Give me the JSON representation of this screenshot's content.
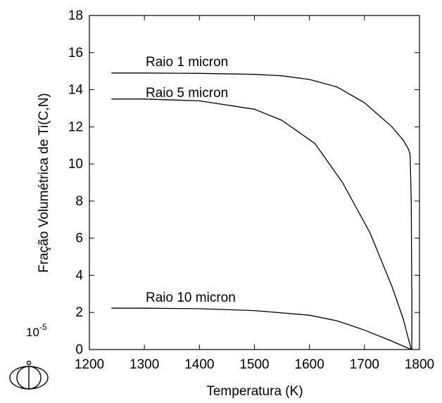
{
  "chart_data": {
    "type": "line",
    "xlabel": "Temperatura (K)",
    "ylabel": "Fração Volumétrica de Ti(C,N)",
    "y_multiplier": "10",
    "y_multiplier_exp": "-5",
    "xlim": [
      1200,
      1800
    ],
    "ylim": [
      0,
      18
    ],
    "x_ticks": [
      1200,
      1300,
      1400,
      1500,
      1600,
      1700,
      1800
    ],
    "y_ticks": [
      0,
      2,
      4,
      6,
      8,
      10,
      12,
      14,
      16,
      18
    ],
    "grid": false,
    "series": [
      {
        "name": "Raio 1 micron",
        "points": [
          [
            1240,
            14.9
          ],
          [
            1300,
            14.9
          ],
          [
            1400,
            14.88
          ],
          [
            1500,
            14.83
          ],
          [
            1550,
            14.75
          ],
          [
            1600,
            14.55
          ],
          [
            1650,
            14.15
          ],
          [
            1700,
            13.3
          ],
          [
            1750,
            12.0
          ],
          [
            1770,
            11.3
          ],
          [
            1780,
            10.8
          ],
          [
            1783,
            10.5
          ],
          [
            1785,
            8.0
          ],
          [
            1786,
            3.0
          ],
          [
            1786,
            0
          ]
        ]
      },
      {
        "name": "Raio 5 micron",
        "points": [
          [
            1240,
            13.5
          ],
          [
            1300,
            13.5
          ],
          [
            1400,
            13.4
          ],
          [
            1500,
            12.95
          ],
          [
            1550,
            12.35
          ],
          [
            1610,
            11.1
          ],
          [
            1660,
            9.0
          ],
          [
            1710,
            6.3
          ],
          [
            1750,
            3.4
          ],
          [
            1770,
            1.7
          ],
          [
            1785,
            0
          ]
        ]
      },
      {
        "name": "Raio 10 micron",
        "points": [
          [
            1240,
            2.23
          ],
          [
            1300,
            2.23
          ],
          [
            1400,
            2.2
          ],
          [
            1500,
            2.1
          ],
          [
            1600,
            1.85
          ],
          [
            1650,
            1.55
          ],
          [
            1700,
            1.05
          ],
          [
            1750,
            0.45
          ],
          [
            1785,
            0
          ]
        ]
      }
    ]
  },
  "logo_icon": "logo-icon"
}
